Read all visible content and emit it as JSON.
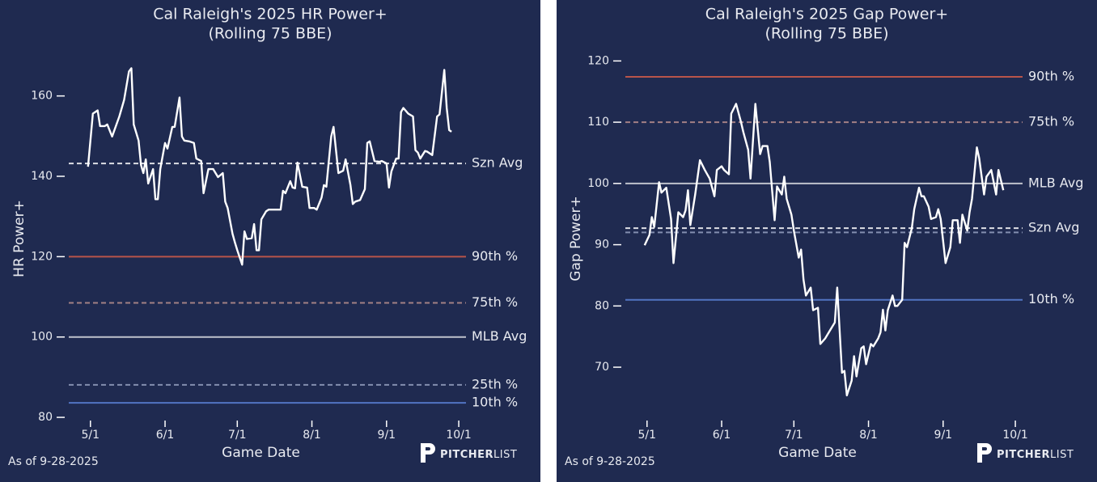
{
  "chart_data": [
    {
      "type": "line",
      "title": "Cal Raleigh's 2025 HR Power+",
      "subtitle": "(Rolling 75 BBE)",
      "xlabel": "Game Date",
      "ylabel": "HR Power+",
      "footnote": "As of 9-28-2025",
      "logo": [
        "PITCHER",
        "LIST"
      ],
      "color": "#ffffff",
      "x": [
        "4/30",
        "5/2",
        "5/4",
        "5/5",
        "5/7",
        "5/8",
        "5/10",
        "5/13",
        "5/15",
        "5/17",
        "5/18",
        "5/19",
        "5/21",
        "5/22",
        "5/23",
        "5/24",
        "5/25",
        "5/27",
        "5/28",
        "5/29",
        "5/30",
        "6/1",
        "6/2",
        "6/4",
        "6/5",
        "6/7",
        "6/8",
        "6/9",
        "6/11",
        "6/13",
        "6/14",
        "6/16",
        "6/17",
        "6/19",
        "6/21",
        "6/23",
        "6/25",
        "6/26",
        "6/27",
        "6/29",
        "6/30",
        "7/1",
        "7/3",
        "7/4",
        "7/5",
        "7/7",
        "7/8",
        "7/9",
        "7/10",
        "7/11",
        "7/13",
        "7/14",
        "7/17",
        "7/19",
        "7/20",
        "7/21",
        "7/23",
        "7/24",
        "7/25",
        "7/26",
        "7/28",
        "7/30",
        "7/31",
        "8/2",
        "8/3",
        "8/5",
        "8/6",
        "8/7",
        "8/9",
        "8/10",
        "8/12",
        "8/14",
        "8/15",
        "8/17",
        "8/18",
        "8/19",
        "8/21",
        "8/23",
        "8/24",
        "8/25",
        "8/27",
        "8/29",
        "8/30",
        "9/1",
        "9/2",
        "9/3",
        "9/5",
        "9/6",
        "9/7",
        "9/8",
        "9/10",
        "9/12",
        "9/13",
        "9/14",
        "9/15",
        "9/17",
        "9/18",
        "9/20",
        "9/22",
        "9/23",
        "9/25",
        "9/26",
        "9/27",
        "9/28"
      ],
      "values": [
        142.4,
        155.6,
        156.4,
        152.5,
        152.5,
        152.9,
        149.9,
        154.9,
        159.0,
        166.1,
        166.9,
        152.9,
        148.9,
        142.8,
        140.8,
        144.2,
        138.2,
        141.8,
        134.3,
        134.3,
        141.8,
        148.3,
        146.9,
        152.3,
        152.3,
        159.6,
        149.9,
        148.9,
        148.7,
        148.3,
        144.4,
        143.8,
        135.8,
        141.8,
        141.8,
        139.8,
        140.8,
        133.7,
        132.1,
        125.7,
        123.6,
        121.6,
        118.0,
        126.3,
        124.4,
        124.6,
        128.1,
        121.6,
        121.6,
        129.3,
        131.3,
        131.7,
        131.7,
        131.7,
        136.4,
        135.8,
        138.8,
        137.2,
        137.0,
        143.4,
        137.4,
        137.2,
        132.1,
        132.1,
        131.7,
        134.7,
        137.8,
        137.4,
        149.9,
        152.3,
        140.8,
        141.4,
        144.2,
        137.8,
        133.1,
        133.7,
        134.1,
        136.8,
        148.3,
        148.7,
        143.8,
        143.6,
        143.8,
        143.2,
        137.2,
        141.2,
        144.4,
        144.4,
        156.0,
        157.0,
        155.6,
        154.9,
        146.5,
        145.9,
        144.4,
        146.3,
        146.1,
        145.3,
        154.9,
        155.4,
        166.5,
        157.0,
        151.5,
        151.1
      ],
      "xlim": [
        "4/22",
        "10/4"
      ],
      "xticks": [
        "5/1",
        "6/1",
        "7/1",
        "8/1",
        "9/1",
        "10/1"
      ],
      "ylim": [
        78,
        171
      ],
      "yticks": [
        80,
        100,
        120,
        140,
        160
      ],
      "reference_lines": [
        {
          "label": "Szn Avg",
          "value": 143.2,
          "color": "#ffffff",
          "style": "dashed"
        },
        {
          "label": "90th %",
          "value": 120,
          "color": "#b8544a",
          "style": "solid"
        },
        {
          "label": "75th %",
          "value": 108.5,
          "color": "#b98f8f",
          "style": "dashed"
        },
        {
          "label": "MLB Avg",
          "value": 100,
          "color": "#bfc2cc",
          "style": "solid"
        },
        {
          "label": "25th %",
          "value": 88.1,
          "color": "#95a0c0",
          "style": "dashed"
        },
        {
          "label": "10th %",
          "value": 83.6,
          "color": "#5274c2",
          "style": "solid"
        }
      ]
    },
    {
      "type": "line",
      "title": "Cal Raleigh's 2025 Gap Power+",
      "subtitle": "(Rolling 75 BBE)",
      "xlabel": "Game Date",
      "ylabel": "Gap Power+",
      "footnote": "As of 9-28-2025",
      "logo": [
        "PITCHER",
        "LIST"
      ],
      "color": "#ffffff",
      "x": [
        "4/30",
        "5/2",
        "5/3",
        "5/4",
        "5/6",
        "5/7",
        "5/9",
        "5/11",
        "5/12",
        "5/14",
        "5/16",
        "5/17",
        "5/18",
        "5/19",
        "5/21",
        "5/23",
        "5/25",
        "5/27",
        "5/29",
        "5/30",
        "6/1",
        "6/2",
        "6/4",
        "6/5",
        "6/7",
        "6/9",
        "6/10",
        "6/12",
        "6/13",
        "6/15",
        "6/17",
        "6/18",
        "6/20",
        "6/21",
        "6/23",
        "6/24",
        "6/26",
        "6/27",
        "6/28",
        "6/30",
        "7/1",
        "7/3",
        "7/4",
        "7/5",
        "7/6",
        "7/8",
        "7/9",
        "7/11",
        "7/12",
        "7/14",
        "7/16",
        "7/18",
        "7/19",
        "7/21",
        "7/22",
        "7/23",
        "7/25",
        "7/26",
        "7/27",
        "7/29",
        "7/30",
        "7/31",
        "8/2",
        "8/3",
        "8/5",
        "8/6",
        "8/7",
        "8/8",
        "8/9",
        "8/11",
        "8/12",
        "8/13",
        "8/15",
        "8/16",
        "8/17",
        "8/19",
        "8/20",
        "8/22",
        "8/23",
        "8/24",
        "8/26",
        "8/27",
        "8/29",
        "8/30",
        "8/31",
        "9/2",
        "9/4",
        "9/5",
        "9/7",
        "9/8",
        "9/9",
        "9/11",
        "9/12",
        "9/13",
        "9/15",
        "9/16",
        "9/18",
        "9/19",
        "9/21",
        "9/23",
        "9/24",
        "9/26"
      ],
      "values": [
        89.9,
        91.6,
        94.5,
        92.9,
        100.2,
        98.5,
        99.3,
        94.2,
        87.0,
        95.3,
        94.5,
        95.6,
        98.9,
        93.2,
        98.2,
        103.8,
        102.2,
        100.8,
        97.9,
        102.2,
        102.8,
        102.2,
        101.5,
        111.4,
        113.0,
        110.1,
        108.4,
        105.5,
        100.8,
        113.0,
        104.8,
        106.1,
        106.1,
        103.5,
        94.0,
        99.5,
        98.2,
        101.1,
        97.5,
        94.9,
        92.3,
        87.9,
        89.2,
        84.3,
        81.7,
        83.0,
        79.3,
        79.7,
        73.8,
        74.7,
        76.0,
        77.3,
        83.0,
        69.1,
        69.4,
        65.4,
        67.8,
        71.8,
        68.5,
        73.1,
        73.4,
        70.5,
        73.8,
        73.4,
        74.7,
        75.7,
        79.4,
        76.0,
        79.3,
        81.7,
        80.0,
        80.0,
        81.0,
        90.3,
        89.6,
        92.7,
        95.8,
        99.3,
        97.9,
        97.9,
        96.2,
        94.2,
        94.5,
        95.8,
        94.2,
        87.0,
        89.6,
        94.0,
        94.0,
        90.3,
        94.9,
        92.3,
        95.3,
        97.5,
        105.9,
        104.1,
        98.2,
        101.1,
        102.2,
        98.2,
        102.2,
        98.9
      ],
      "xlim": [
        "4/22",
        "10/4"
      ],
      "xticks": [
        "5/1",
        "6/1",
        "7/1",
        "8/1",
        "9/1",
        "10/1"
      ],
      "ylim": [
        60.5,
        121.5
      ],
      "yticks": [
        70,
        80,
        90,
        100,
        110,
        120
      ],
      "reference_lines": [
        {
          "label": "90th %",
          "value": 117.4,
          "color": "#b8544a",
          "style": "solid"
        },
        {
          "label": "75th %",
          "value": 110,
          "color": "#b98f8f",
          "style": "dashed"
        },
        {
          "label": "MLB Avg",
          "value": 100,
          "color": "#bfc2cc",
          "style": "solid"
        },
        {
          "label": "Szn Avg",
          "value": 92.7,
          "color": "#ffffff",
          "style": "dashed"
        },
        {
          "value": 92,
          "color": "#95a0c0",
          "style": "dashed"
        },
        {
          "label": "10th %",
          "value": 81,
          "color": "#5274c2",
          "style": "solid"
        }
      ]
    }
  ]
}
